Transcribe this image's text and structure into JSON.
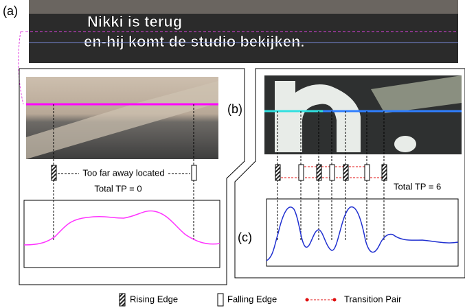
{
  "figure": {
    "panel_a": {
      "label": "(a)",
      "subtitle_lines": [
        "Nikki is terug",
        "en-hij komt de studio bekijken."
      ]
    },
    "panel_b": {
      "label": "(b)",
      "annotation": "Too far away located",
      "total": "Total TP = 0"
    },
    "panel_c": {
      "label": "(c)",
      "total": "Total TP = 6"
    },
    "legend": [
      "Rising Edge",
      "Falling Edge",
      "Transition Pair"
    ]
  }
}
